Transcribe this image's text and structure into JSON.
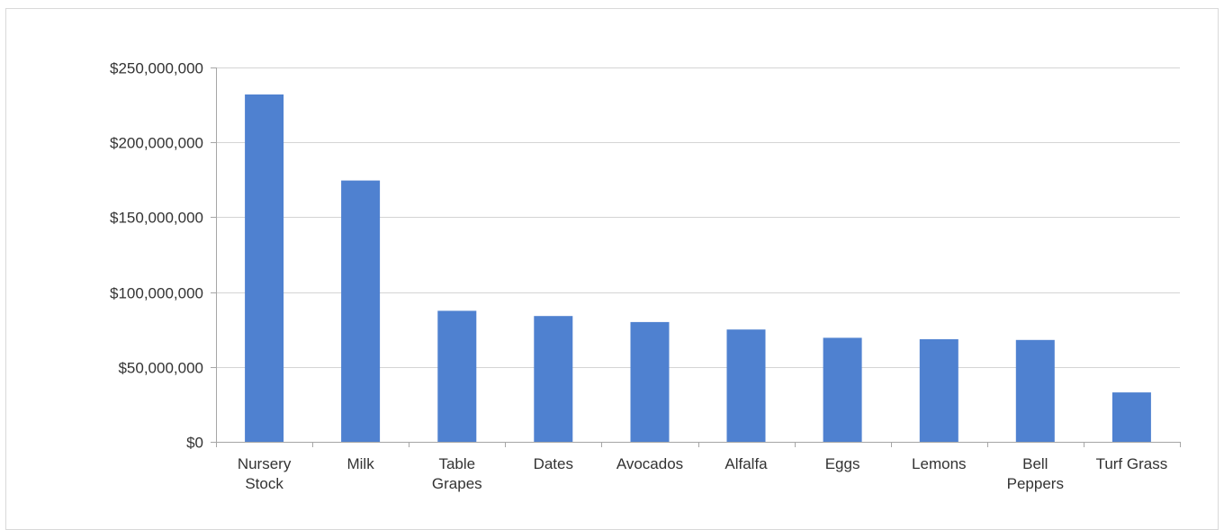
{
  "chart_data": {
    "type": "bar",
    "categories": [
      [
        "Nursery",
        "Stock"
      ],
      [
        "Milk"
      ],
      [
        "Table",
        "Grapes"
      ],
      [
        "Dates"
      ],
      [
        "Avocados"
      ],
      [
        "Alfalfa"
      ],
      [
        "Eggs"
      ],
      [
        "Lemons"
      ],
      [
        "Bell",
        "Peppers"
      ],
      [
        "Turf Grass"
      ]
    ],
    "values": [
      232000000,
      174500000,
      87500000,
      84000000,
      80000000,
      75000000,
      69500000,
      68500000,
      68000000,
      33000000
    ],
    "ylim": [
      0,
      250000000
    ],
    "yticks": [
      0,
      50000000,
      100000000,
      150000000,
      200000000,
      250000000
    ],
    "ytick_labels": [
      "$0",
      "$50,000,000",
      "$100,000,000",
      "$150,000,000",
      "$200,000,000",
      "$250,000,000"
    ],
    "grid": true,
    "bar_color": "#4f81d0",
    "title": "",
    "xlabel": "",
    "ylabel": ""
  }
}
